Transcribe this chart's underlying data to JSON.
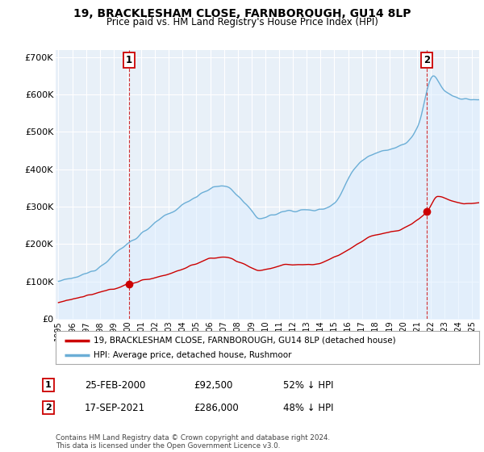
{
  "title": "19, BRACKLESHAM CLOSE, FARNBOROUGH, GU14 8LP",
  "subtitle": "Price paid vs. HM Land Registry's House Price Index (HPI)",
  "ylabel_ticks": [
    "£0",
    "£100K",
    "£200K",
    "£300K",
    "£400K",
    "£500K",
    "£600K",
    "£700K"
  ],
  "ytick_vals": [
    0,
    100000,
    200000,
    300000,
    400000,
    500000,
    600000,
    700000
  ],
  "ylim": [
    0,
    720000
  ],
  "xlim_start": 1994.8,
  "xlim_end": 2025.5,
  "hpi_color": "#6baed6",
  "hpi_fill_color": "#ddeeff",
  "price_color": "#cc0000",
  "sale1": {
    "date_num": 2000.12,
    "price": 92500,
    "label": "1"
  },
  "sale2": {
    "date_num": 2021.71,
    "price": 286000,
    "label": "2"
  },
  "legend_label_red": "19, BRACKLESHAM CLOSE, FARNBOROUGH, GU14 8LP (detached house)",
  "legend_label_blue": "HPI: Average price, detached house, Rushmoor",
  "table_rows": [
    {
      "num": "1",
      "date": "25-FEB-2000",
      "price": "£92,500",
      "pct": "52% ↓ HPI"
    },
    {
      "num": "2",
      "date": "17-SEP-2021",
      "price": "£286,000",
      "pct": "48% ↓ HPI"
    }
  ],
  "footnote": "Contains HM Land Registry data © Crown copyright and database right 2024.\nThis data is licensed under the Open Government Licence v3.0.",
  "background_color": "#ffffff",
  "chart_bg_color": "#e8f0f8",
  "grid_color": "#ffffff"
}
